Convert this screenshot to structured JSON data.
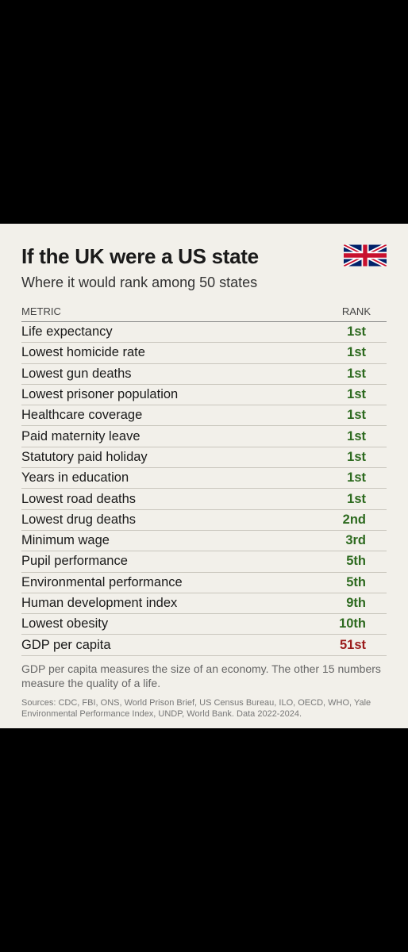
{
  "title": "If the UK were a US state",
  "subtitle": "Where it would rank among 50 states",
  "table": {
    "header": [
      "METRIC",
      "RANK"
    ],
    "rows": [
      [
        "Life expectancy",
        "1st"
      ],
      [
        "Lowest homicide rate",
        "1st"
      ],
      [
        "Lowest gun deaths",
        "1st"
      ],
      [
        "Lowest prisoner population",
        "1st"
      ],
      [
        "Healthcare coverage",
        "1st"
      ],
      [
        "Paid maternity leave",
        "1st"
      ],
      [
        "Statutory paid holiday",
        "1st"
      ],
      [
        "Years in education",
        "1st"
      ],
      [
        "Lowest road deaths",
        "1st"
      ],
      [
        "Lowest drug deaths",
        "2nd"
      ],
      [
        "Minimum wage",
        "3rd"
      ],
      [
        "Pupil performance",
        "5th"
      ],
      [
        "Environmental performance",
        "5th"
      ],
      [
        "Human development index",
        "9th"
      ],
      [
        "Lowest obesity",
        "10th"
      ],
      [
        "GDP per capita",
        "51st"
      ]
    ]
  },
  "note": "GDP per capita measures the size of an economy. The other 15 numbers measure the quality of a life.",
  "sources": "Sources: CDC, FBI, ONS, World Prison Brief, US Census Bureau, ILO, OECD, WHO, Yale Environmental Performance Index, UNDP, World Bank. Data 2022-2024."
}
